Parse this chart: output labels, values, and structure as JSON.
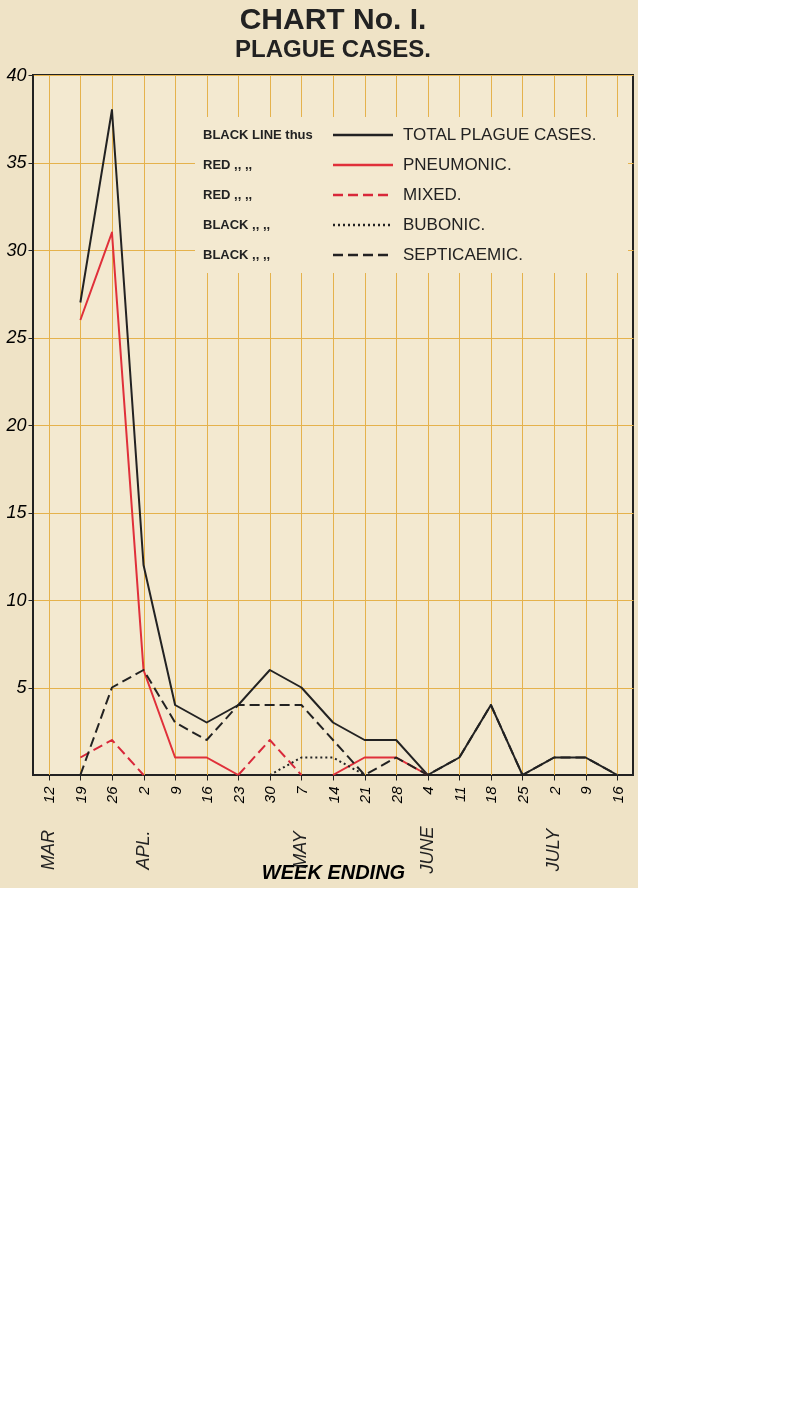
{
  "chart_data": {
    "type": "line",
    "title": "CHART No. I.",
    "subtitle": "PLAGUE CASES.",
    "xlabel": "WEEK ENDING",
    "categories": [
      "12",
      "19",
      "26",
      "2",
      "9",
      "16",
      "23",
      "30",
      "7",
      "14",
      "21",
      "28",
      "4",
      "11",
      "18",
      "25",
      "2",
      "9",
      "16"
    ],
    "series": [
      {
        "name": "TOTAL PLAGUE CASES.",
        "color": "#222222",
        "line_style": "solid",
        "values": [
          null,
          27,
          38,
          12,
          4,
          3,
          4,
          6,
          5,
          3,
          2,
          2,
          0,
          1,
          4,
          0,
          1,
          1,
          0
        ]
      },
      {
        "name": "PNEUMONIC.",
        "color": "#e0303a",
        "line_style": "solid",
        "values": [
          null,
          26,
          31,
          6,
          1,
          1,
          0,
          null,
          null,
          0,
          1,
          1,
          0,
          null,
          null,
          null,
          null,
          null,
          null
        ]
      },
      {
        "name": "MIXED.",
        "color": "#d8283a",
        "line_style": "dashed",
        "values": [
          null,
          1,
          2,
          0,
          null,
          null,
          0,
          2,
          0,
          null,
          null,
          null,
          null,
          null,
          null,
          null,
          null,
          null,
          null
        ]
      },
      {
        "name": "BUBONIC.",
        "color": "#222222",
        "line_style": "dotted",
        "values": [
          null,
          null,
          null,
          null,
          null,
          null,
          null,
          0,
          1,
          1,
          0,
          null,
          null,
          null,
          null,
          null,
          null,
          null,
          null
        ]
      },
      {
        "name": "SEPTICAEMIC.",
        "color": "#222222",
        "line_style": "dashed",
        "values": [
          null,
          0,
          5,
          6,
          3,
          2,
          4,
          4,
          4,
          2,
          0,
          1,
          0,
          1,
          4,
          0,
          1,
          1,
          0
        ]
      }
    ],
    "annotations": [
      "BLACK LINE thus",
      "RED ,, ,,",
      "RED ,, ,,",
      "BLACK ,, ,,",
      "BLACK ,, ,,",
      "MAR",
      "APL.",
      "MAY",
      "JUNE",
      "JULY"
    ],
    "ylim": [
      0,
      40
    ],
    "yticks": [
      5,
      10,
      15,
      20,
      25,
      30,
      35,
      40
    ],
    "grid": true,
    "legend": "top right"
  }
}
